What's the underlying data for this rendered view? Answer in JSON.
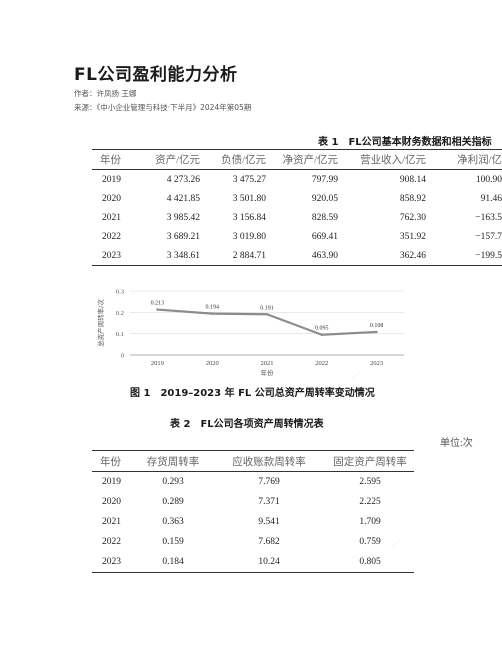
{
  "article": {
    "title": "FL公司盈利能力分析",
    "authors": "作者：许凤扬 王娜",
    "source": "来源：《中小企业管理与科技·下半月》2024年第05期"
  },
  "table1": {
    "caption": "表 1　FL公司基本财务数据和相关指标",
    "headers": [
      "年份",
      "资产/亿元",
      "负债/亿元",
      "净资产/亿元",
      "营业收入/亿元",
      "净利润/亿"
    ],
    "rows": [
      [
        "2019",
        "4 273.26",
        "3 475.27",
        "797.99",
        "908.14",
        "100.90"
      ],
      [
        "2020",
        "4 421.85",
        "3 501.80",
        "920.05",
        "858.92",
        "91.46"
      ],
      [
        "2021",
        "3 985.42",
        "3 156.84",
        "828.59",
        "762.30",
        "−163.5"
      ],
      [
        "2022",
        "3 689.21",
        "3 019.80",
        "669.41",
        "351.92",
        "−157.7"
      ],
      [
        "2023",
        "3 348.61",
        "2 884.71",
        "463.90",
        "362.46",
        "−199.5"
      ]
    ]
  },
  "figure1": {
    "caption": "图 1　2019–2023 年 FL 公司总资产周转率变动情况"
  },
  "chart_data": {
    "type": "line",
    "x": [
      "2019",
      "2020",
      "2021",
      "2022",
      "2023"
    ],
    "series": [
      {
        "values": [
          0.213,
          0.194,
          0.191,
          0.095,
          0.108
        ]
      }
    ],
    "data_labels": [
      "0.213",
      "0.194",
      "0.191",
      "0.095",
      "0.108"
    ],
    "xlabel": "年份",
    "ylabel": "总资产周转率/次",
    "yticks": [
      "0",
      "0.1",
      "0.2",
      "0.3"
    ],
    "ylim": [
      0,
      0.3
    ],
    "grid": true,
    "line_color": "#8c8c8c"
  },
  "table2": {
    "caption": "表 2　FL公司各项资产周转情况表",
    "unit": "单位:次",
    "headers": [
      "年份",
      "存货周转率",
      "应收账款周转率",
      "固定资产周转率"
    ],
    "rows": [
      [
        "2019",
        "0.293",
        "7.769",
        "2.595"
      ],
      [
        "2020",
        "0.289",
        "7.371",
        "2.225"
      ],
      [
        "2021",
        "0.363",
        "9.541",
        "1.709"
      ],
      [
        "2022",
        "0.159",
        "7.682",
        "0.759"
      ],
      [
        "2023",
        "0.184",
        "10.24",
        "0.805"
      ]
    ]
  }
}
